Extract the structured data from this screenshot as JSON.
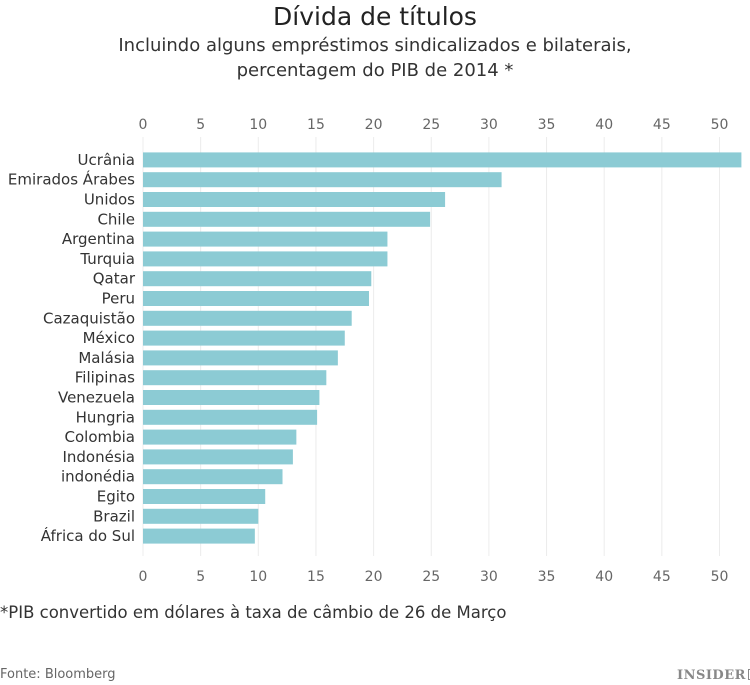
{
  "title": "Dívida de títulos",
  "subtitle_line1": "Incluindo alguns empréstimos sindicalizados e bilaterais,",
  "subtitle_line2": "percentagem do PIB de 2014 *",
  "footnote": "*PIB convertido em dólares à taxa de câmbio de 26 de Março",
  "source": "Fonte: Bloomberg",
  "logo": "INSIDER PRO",
  "chart_data": {
    "type": "bar",
    "orientation": "horizontal",
    "title": "Dívida de títulos",
    "categories": [
      "Ucrânia",
      "Emirados Árabes",
      "Unidos",
      "Chile",
      "Argentina",
      "Turquia",
      "Qatar",
      "Peru",
      "Cazaquistão",
      "México",
      "Malásia",
      "Filipinas",
      "Venezuela",
      "Hungria",
      "Colombia",
      "Indonésia",
      "indonédia",
      "Egito",
      "Brazil",
      "África do Sul"
    ],
    "values": [
      51.9,
      31.1,
      26.2,
      24.9,
      21.2,
      21.2,
      19.8,
      19.6,
      18.1,
      17.5,
      16.9,
      15.9,
      15.3,
      15.1,
      13.3,
      13.0,
      12.1,
      10.6,
      10.0,
      9.7
    ],
    "xlim": [
      0,
      52
    ],
    "xticks": [
      0,
      5,
      10,
      15,
      20,
      25,
      30,
      35,
      40,
      45,
      50
    ],
    "xtick_position": "top and bottom",
    "grid": true,
    "bar_color": "#8ccbd4",
    "grid_color": "#ececec"
  }
}
